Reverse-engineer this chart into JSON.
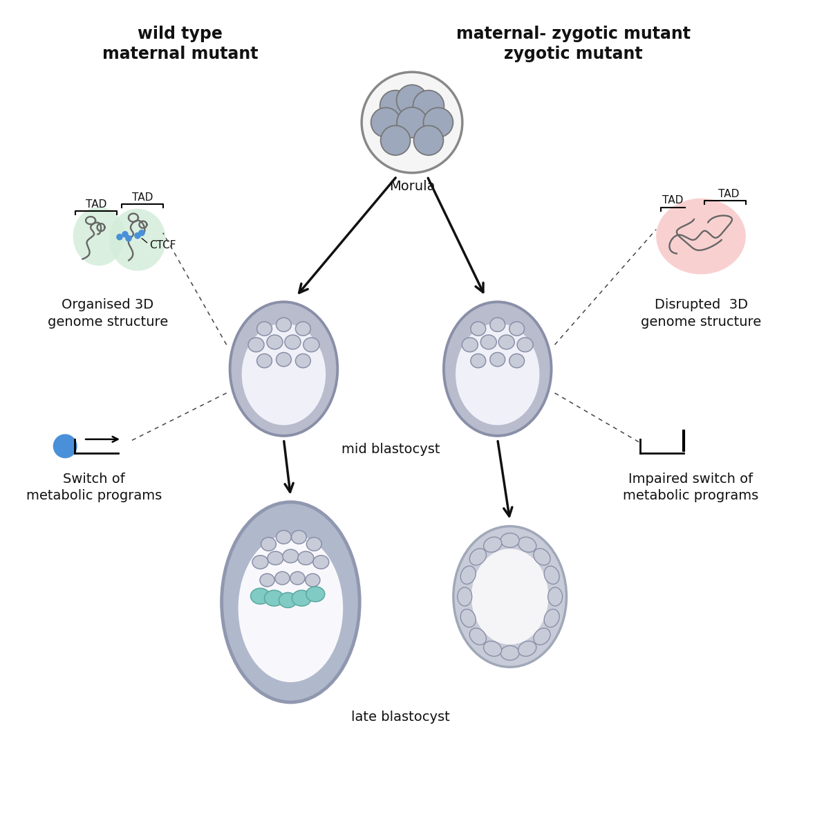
{
  "bg_color": "#ffffff",
  "title_left": "wild type\nmaternal mutant",
  "title_right": "maternal- zygotic mutant\nzygotic mutant",
  "morula_label": "Morula",
  "mid_blast_label": "mid blastocyst",
  "late_blast_label": "late blastocyst",
  "organised_label": "Organised 3D\ngenome structure",
  "disrupted_label": "Disrupted  3D\ngenome structure",
  "ctcf_label": "CTCF",
  "tad_label": "TAD",
  "switch_label": "Switch of\nmetabolic programs",
  "impaired_label": "Impaired switch of\nmetabolic programs",
  "shell_outer_color": "#8a8fa8",
  "shell_fill_color": "#b8bccc",
  "cell_fill_color": "#c8ccd8",
  "cell_edge_color": "#8a8fa8",
  "cavity_color": "#f0f0f8",
  "morula_outer": "#888888",
  "morula_bg": "#f5f5f5",
  "morula_cell": "#9da8bc",
  "morula_cell_edge": "#777777",
  "green_blob": "#d4edda",
  "red_blob": "#f8c8c8",
  "blue_dot": "#4a90d9",
  "teal_cell": "#80cbc4",
  "teal_edge": "#5ba8a0",
  "text_color": "#111111",
  "arrow_color": "#111111",
  "chromatin_color": "#666666",
  "late_wt_shell": "#9098b0",
  "late_wt_fill": "#b0b8cc",
  "late_mut_shell": "#a0a8b8",
  "late_mut_fill": "#c8ccd8"
}
